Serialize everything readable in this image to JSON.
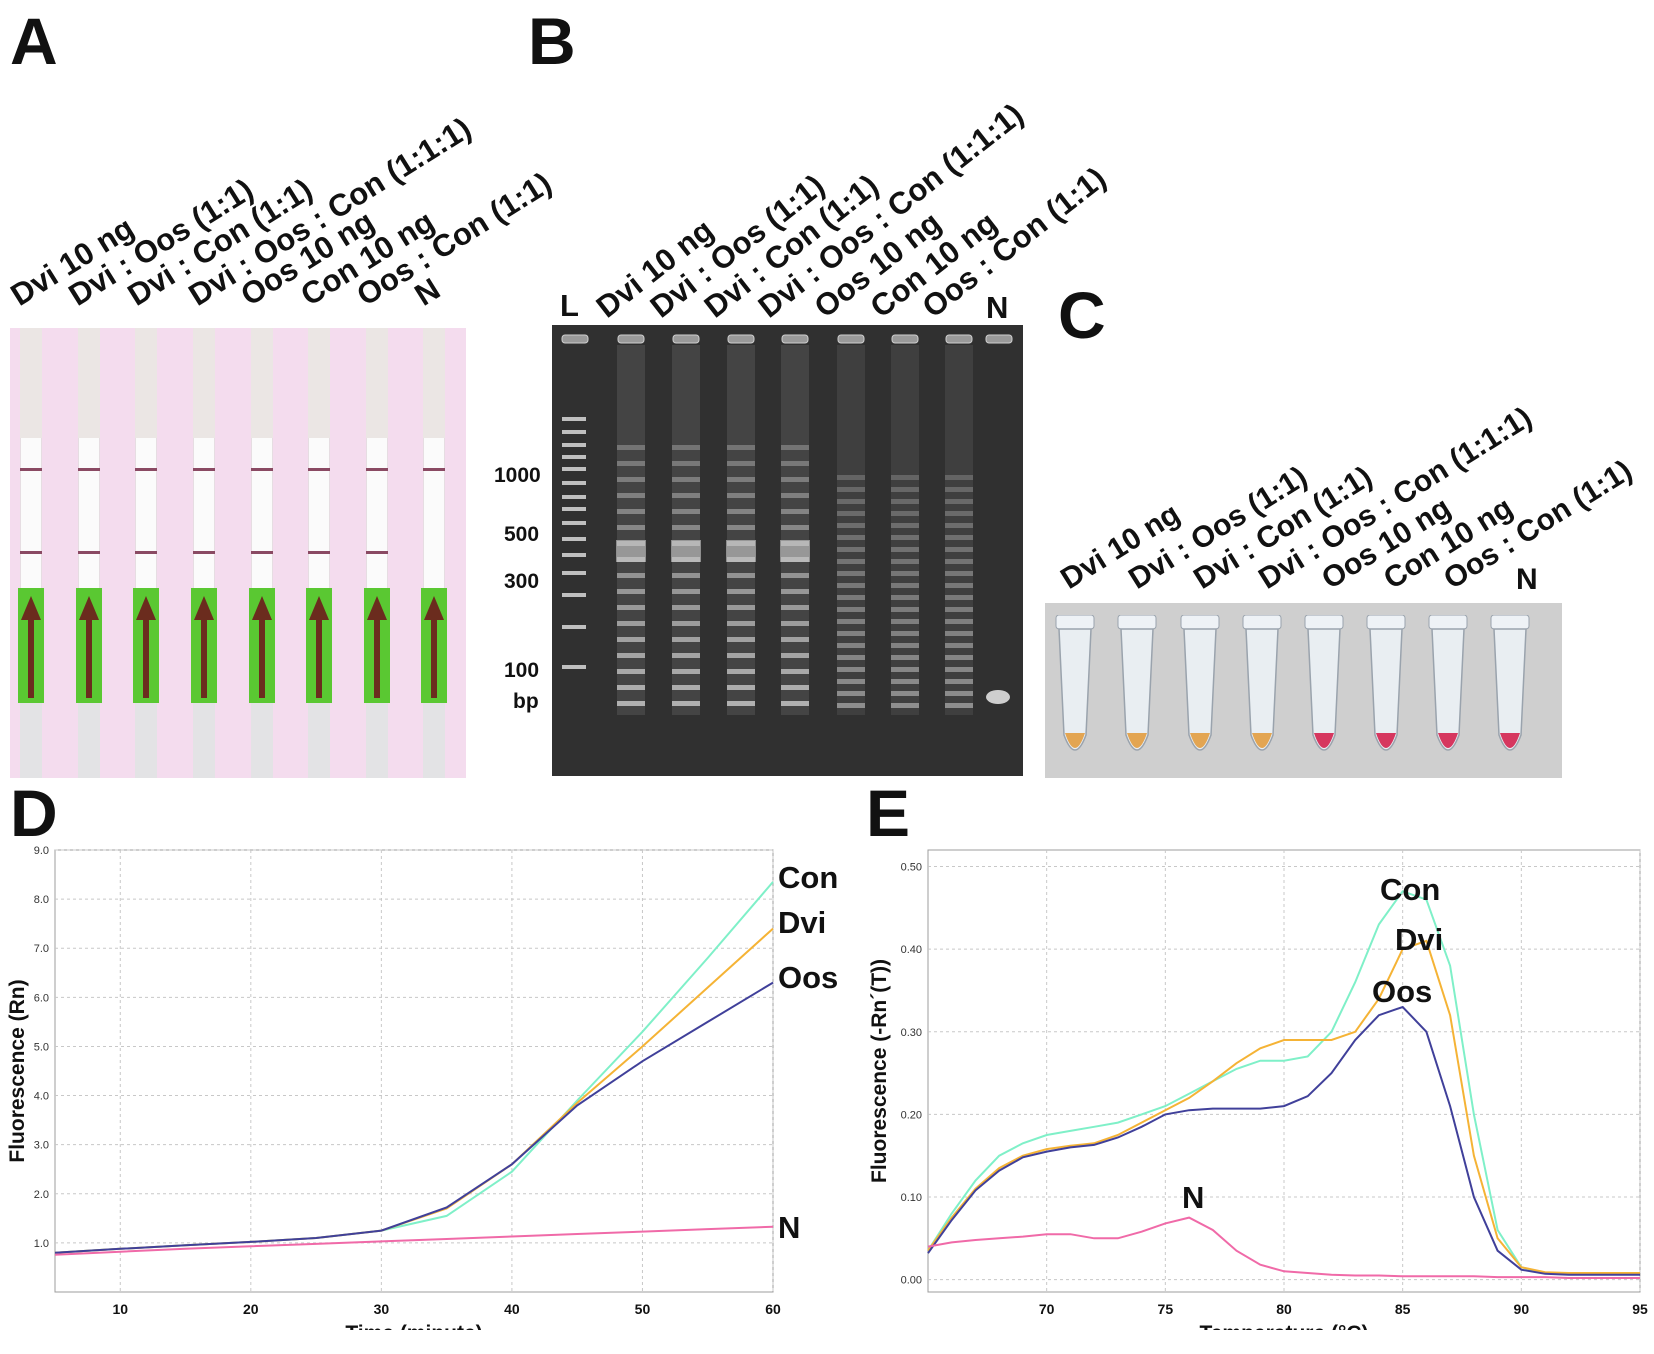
{
  "panels": {
    "a": "A",
    "b": "B",
    "c": "C",
    "d": "D",
    "e": "E"
  },
  "lanes": [
    "Dvi 10 ng",
    "Dvi : Oos (1:1)",
    "Dvi : Con (1:1)",
    "Dvi : Oos : Con (1:1:1)",
    "Oos 10 ng",
    "Con 10 ng",
    "Oos : Con (1:1)",
    "N"
  ],
  "gel": {
    "ladder_label": "L",
    "markers": [
      "1000",
      "500",
      "300",
      "100"
    ],
    "unit": "bp"
  },
  "colors": {
    "con": "#7ff0c8",
    "dvi": "#f5b335",
    "oos": "#40409a",
    "n": "#f06aa8",
    "strip_bg": "#f4dcee",
    "pad": "#5ac832",
    "line": "#8a4a63",
    "tube_yellow": "#e3a552",
    "tube_pink": "#d6375f"
  },
  "tube_colors": [
    "yellow",
    "yellow",
    "yellow",
    "yellow",
    "pink",
    "pink",
    "pink",
    "pink"
  ],
  "chart_data": [
    {
      "id": "D",
      "type": "line",
      "title": "",
      "xlabel": "Time (minute)",
      "ylabel": "Fluorescence (Rn)",
      "xlim": [
        5,
        60
      ],
      "ylim": [
        0.0,
        9.0
      ],
      "xticks": [
        "10",
        "20",
        "30",
        "40",
        "50",
        "60"
      ],
      "yticks": [
        "1.0",
        "2.0",
        "3.0",
        "4.0",
        "5.0",
        "6.0",
        "7.0",
        "8.0",
        "9.0"
      ],
      "grid": true,
      "series": [
        {
          "name": "Con",
          "x": [
            5,
            10,
            15,
            20,
            25,
            30,
            35,
            40,
            45,
            50,
            55,
            60
          ],
          "y": [
            0.8,
            0.88,
            0.95,
            1.02,
            1.1,
            1.25,
            1.55,
            2.45,
            3.9,
            5.3,
            6.8,
            8.35
          ]
        },
        {
          "name": "Dvi",
          "x": [
            5,
            10,
            15,
            20,
            25,
            30,
            35,
            40,
            45,
            50,
            55,
            60
          ],
          "y": [
            0.8,
            0.88,
            0.95,
            1.02,
            1.1,
            1.25,
            1.7,
            2.6,
            3.85,
            5.0,
            6.2,
            7.4
          ]
        },
        {
          "name": "Oos",
          "x": [
            5,
            10,
            15,
            20,
            25,
            30,
            35,
            40,
            45,
            50,
            55,
            60
          ],
          "y": [
            0.8,
            0.88,
            0.95,
            1.02,
            1.1,
            1.25,
            1.72,
            2.6,
            3.8,
            4.7,
            5.5,
            6.3
          ]
        },
        {
          "name": "N",
          "x": [
            5,
            10,
            15,
            20,
            25,
            30,
            35,
            40,
            45,
            50,
            55,
            60
          ],
          "y": [
            0.76,
            0.82,
            0.88,
            0.93,
            0.98,
            1.03,
            1.08,
            1.13,
            1.18,
            1.23,
            1.28,
            1.33
          ]
        }
      ]
    },
    {
      "id": "E",
      "type": "line",
      "title": "",
      "xlabel": "Temperature (°C)",
      "ylabel": "Fluorescence (-Rn´(T))",
      "xlim": [
        65,
        95
      ],
      "ylim": [
        -0.015,
        0.52
      ],
      "xticks": [
        "70",
        "75",
        "80",
        "85",
        "90",
        "95"
      ],
      "yticks": [
        "0.00",
        "0.10",
        "0.20",
        "0.30",
        "0.40",
        "0.50"
      ],
      "grid": true,
      "series": [
        {
          "name": "Con",
          "x": [
            65,
            66,
            67,
            68,
            69,
            70,
            71,
            72,
            73,
            74,
            75,
            76,
            77,
            78,
            79,
            80,
            81,
            82,
            83,
            84,
            85,
            86,
            87,
            88,
            89,
            90,
            91,
            92,
            93,
            94,
            95
          ],
          "y": [
            0.035,
            0.08,
            0.12,
            0.15,
            0.165,
            0.175,
            0.18,
            0.185,
            0.19,
            0.2,
            0.21,
            0.225,
            0.24,
            0.255,
            0.265,
            0.265,
            0.27,
            0.3,
            0.36,
            0.43,
            0.47,
            0.46,
            0.38,
            0.2,
            0.06,
            0.015,
            0.008,
            0.007,
            0.007,
            0.007,
            0.007
          ]
        },
        {
          "name": "Dvi",
          "x": [
            65,
            66,
            67,
            68,
            69,
            70,
            71,
            72,
            73,
            74,
            75,
            76,
            77,
            78,
            79,
            80,
            81,
            82,
            83,
            84,
            85,
            86,
            87,
            88,
            89,
            90,
            91,
            92,
            93,
            94,
            95
          ],
          "y": [
            0.035,
            0.075,
            0.11,
            0.135,
            0.15,
            0.158,
            0.162,
            0.165,
            0.175,
            0.19,
            0.205,
            0.22,
            0.24,
            0.262,
            0.28,
            0.29,
            0.29,
            0.29,
            0.3,
            0.34,
            0.4,
            0.41,
            0.32,
            0.15,
            0.05,
            0.015,
            0.009,
            0.008,
            0.008,
            0.008,
            0.008
          ]
        },
        {
          "name": "Oos",
          "x": [
            65,
            66,
            67,
            68,
            69,
            70,
            71,
            72,
            73,
            74,
            75,
            76,
            77,
            78,
            79,
            80,
            81,
            82,
            83,
            84,
            85,
            86,
            87,
            88,
            89,
            90,
            91,
            92,
            93,
            94,
            95
          ],
          "y": [
            0.032,
            0.072,
            0.108,
            0.132,
            0.148,
            0.155,
            0.16,
            0.163,
            0.172,
            0.185,
            0.2,
            0.205,
            0.207,
            0.207,
            0.207,
            0.21,
            0.222,
            0.25,
            0.29,
            0.32,
            0.33,
            0.3,
            0.21,
            0.1,
            0.035,
            0.012,
            0.007,
            0.006,
            0.006,
            0.006,
            0.006
          ]
        },
        {
          "name": "N",
          "x": [
            65,
            66,
            67,
            68,
            69,
            70,
            71,
            72,
            73,
            74,
            75,
            76,
            77,
            78,
            79,
            80,
            81,
            82,
            83,
            84,
            85,
            86,
            87,
            88,
            89,
            90,
            91,
            92,
            93,
            94,
            95
          ],
          "y": [
            0.04,
            0.045,
            0.048,
            0.05,
            0.052,
            0.055,
            0.055,
            0.05,
            0.05,
            0.058,
            0.068,
            0.075,
            0.06,
            0.035,
            0.018,
            0.01,
            0.008,
            0.006,
            0.005,
            0.005,
            0.004,
            0.004,
            0.004,
            0.004,
            0.003,
            0.003,
            0.003,
            0.002,
            0.002,
            0.002,
            0.002
          ]
        }
      ]
    }
  ]
}
